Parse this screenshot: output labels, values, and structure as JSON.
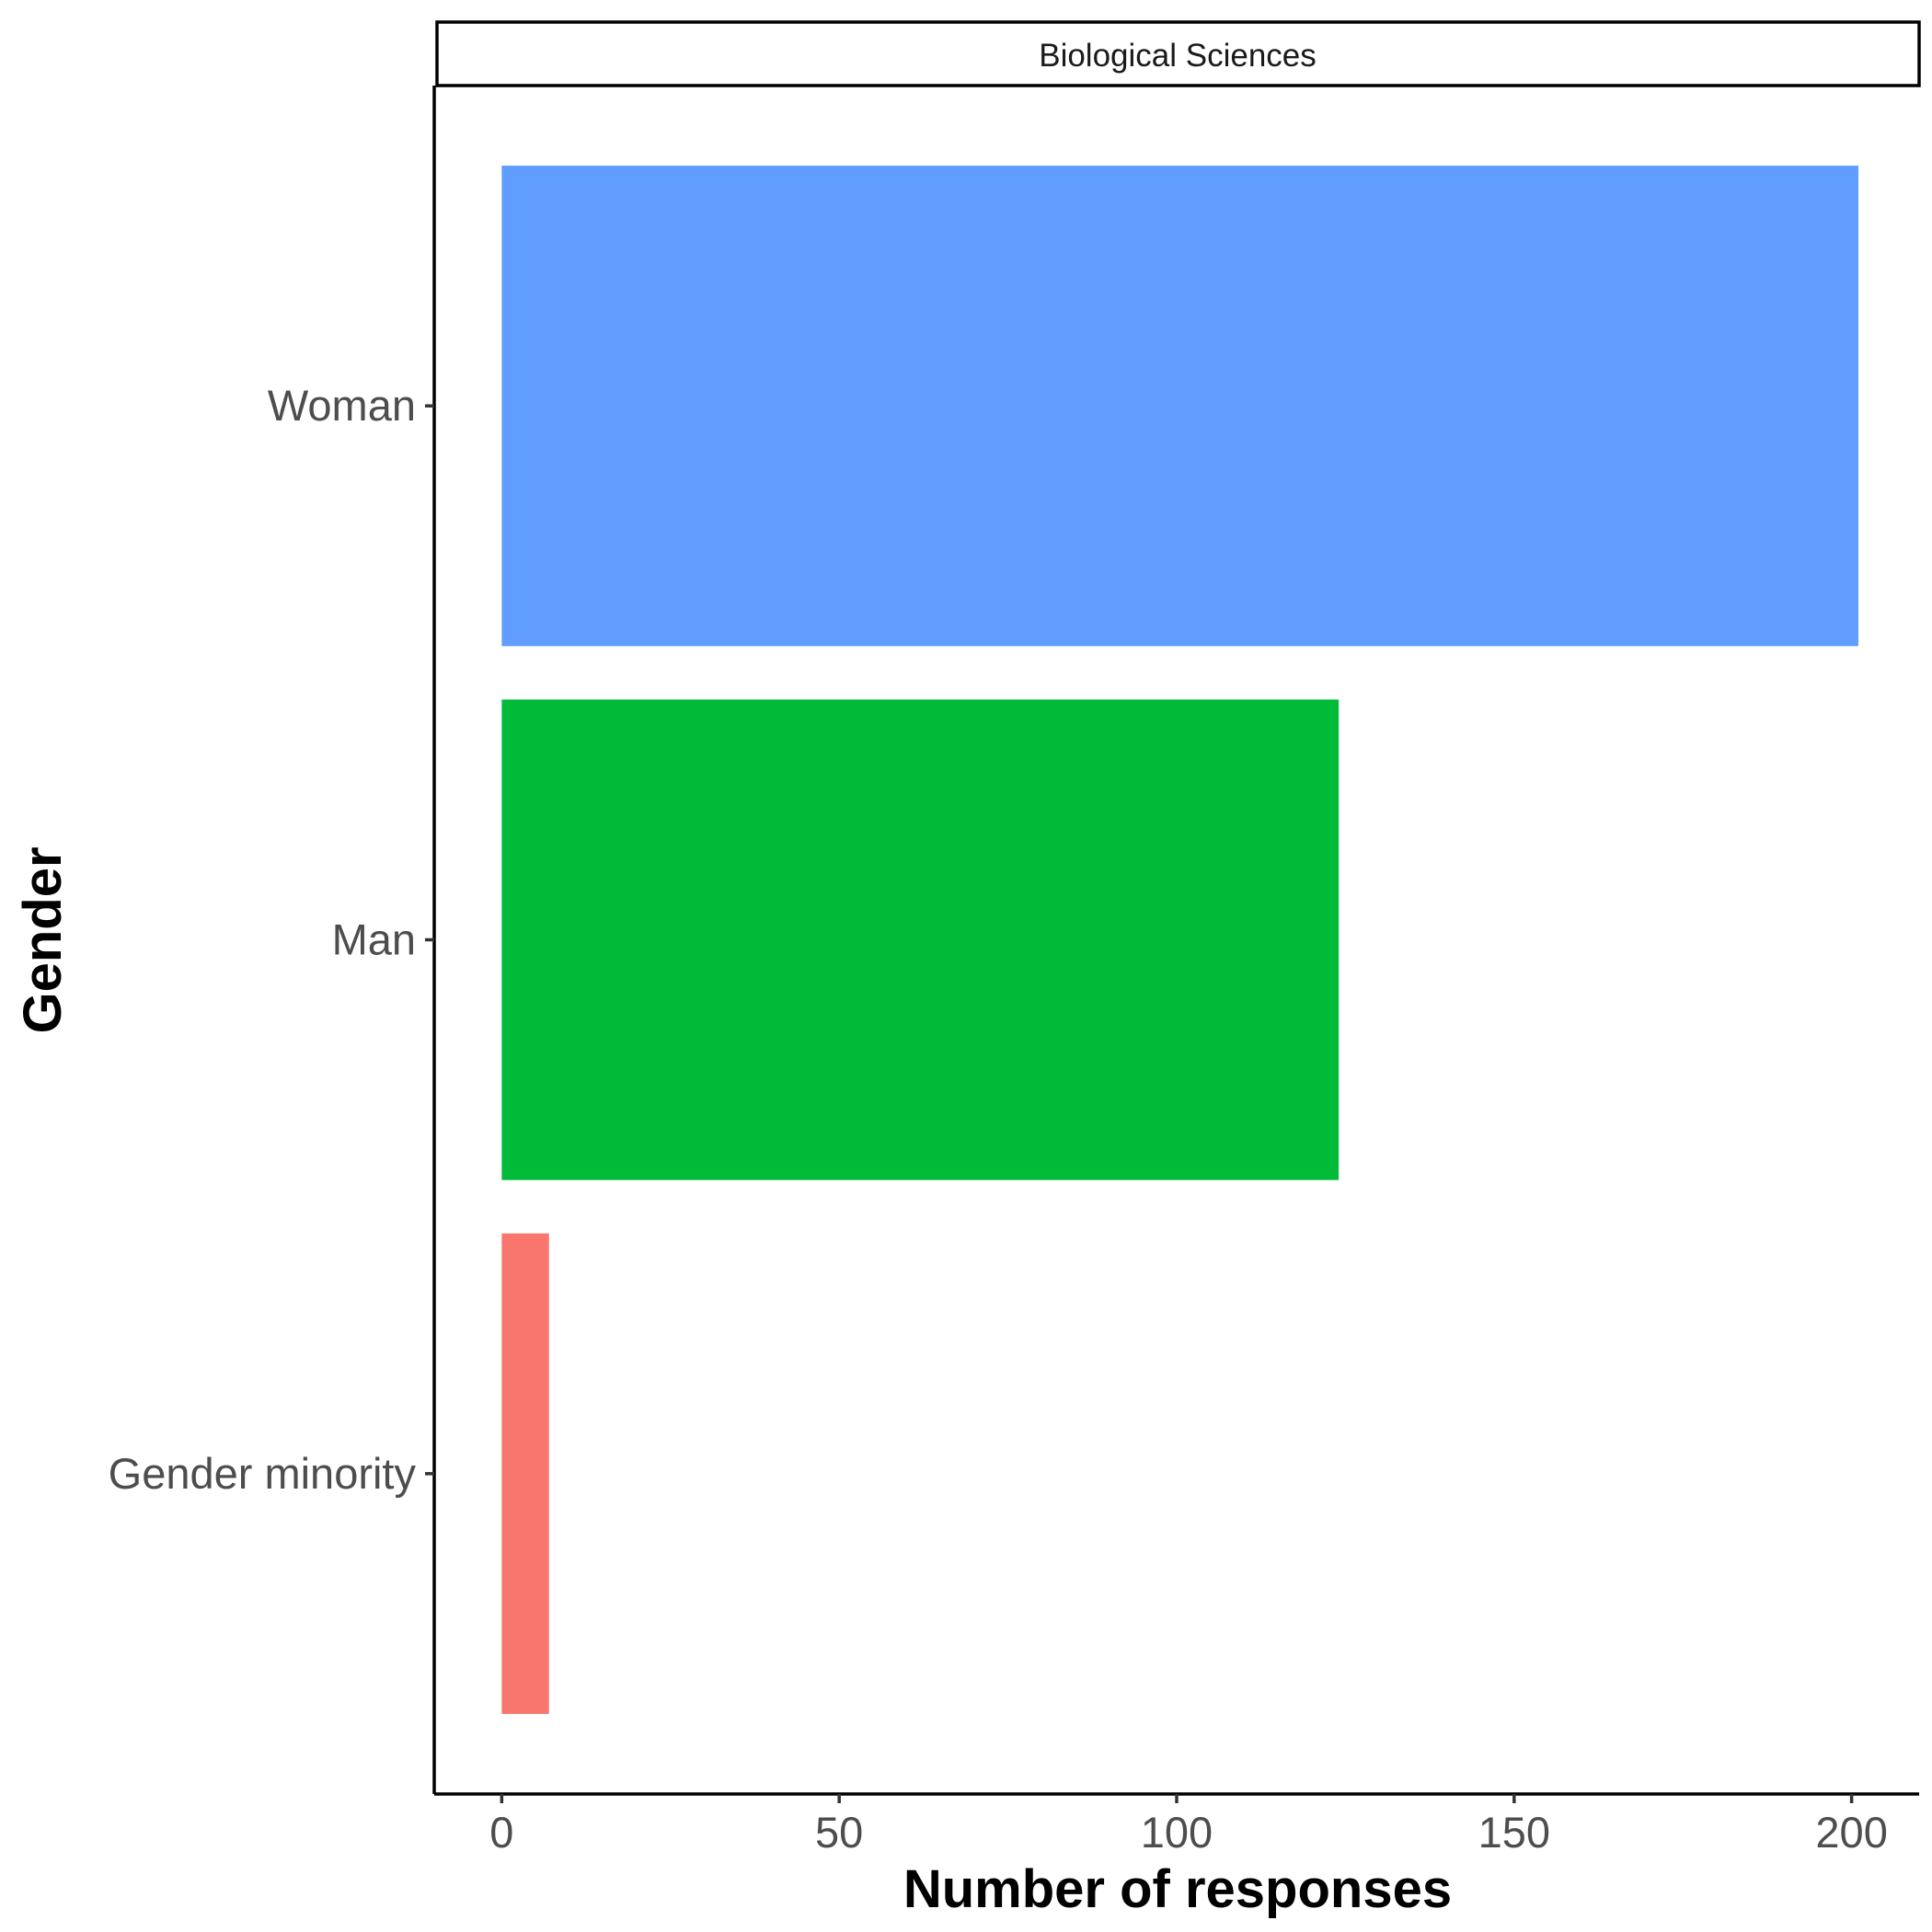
{
  "chart_data": {
    "type": "bar",
    "orientation": "horizontal",
    "facet_label": "Biological Sciences",
    "categories": [
      "Woman",
      "Man",
      "Gender minority"
    ],
    "values": [
      201,
      124,
      7
    ],
    "colors": [
      "#619CFF",
      "#00BA38",
      "#F8766D"
    ],
    "xlabel": "Number of responses",
    "ylabel": "Gender",
    "xlim": [
      -10,
      210
    ],
    "xticks": [
      0,
      50,
      100,
      150,
      200
    ],
    "xtick_labels": [
      "0",
      "50",
      "100",
      "150",
      "200"
    ],
    "grid": false,
    "legend": "none"
  }
}
